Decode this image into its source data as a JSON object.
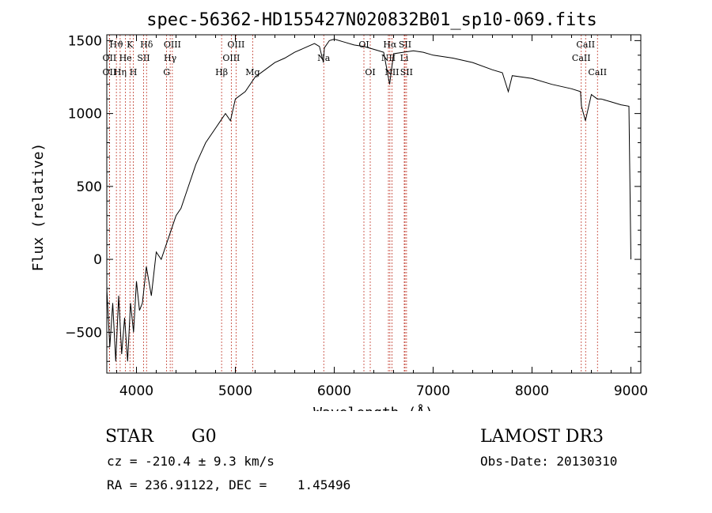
{
  "chart_data": {
    "type": "line",
    "title": "spec-56362-HD155427N020832B01_sp10-069.fits",
    "xlabel": "Wavelength (Å)",
    "ylabel": "Flux (relative)",
    "xlim": [
      3700,
      9100
    ],
    "ylim": [
      -780,
      1540
    ],
    "xticks": [
      4000,
      5000,
      6000,
      7000,
      8000,
      9000
    ],
    "yticks": [
      -500,
      0,
      500,
      1000,
      1500
    ],
    "series": [
      {
        "name": "flux",
        "x": [
          3700,
          3730,
          3760,
          3790,
          3820,
          3850,
          3880,
          3910,
          3940,
          3970,
          4000,
          4030,
          4060,
          4100,
          4150,
          4200,
          4250,
          4300,
          4350,
          4400,
          4450,
          4500,
          4600,
          4700,
          4800,
          4850,
          4900,
          4950,
          5000,
          5100,
          5200,
          5300,
          5400,
          5500,
          5600,
          5700,
          5800,
          5850,
          5890,
          5900,
          5950,
          6000,
          6100,
          6200,
          6300,
          6400,
          6500,
          6560,
          6600,
          6700,
          6800,
          6900,
          7000,
          7200,
          7400,
          7600,
          7700,
          7760,
          7800,
          8000,
          8200,
          8400,
          8490,
          8500,
          8540,
          8600,
          8660,
          8700,
          8800,
          8900,
          8980,
          9000
        ],
        "y": [
          -200,
          -600,
          -300,
          -700,
          -250,
          -650,
          -400,
          -700,
          -300,
          -500,
          -150,
          -350,
          -300,
          -50,
          -250,
          50,
          0,
          100,
          200,
          300,
          350,
          450,
          650,
          800,
          900,
          950,
          1000,
          950,
          1100,
          1150,
          1250,
          1300,
          1350,
          1380,
          1420,
          1450,
          1480,
          1460,
          1350,
          1450,
          1500,
          1510,
          1490,
          1470,
          1460,
          1440,
          1420,
          1200,
          1410,
          1420,
          1430,
          1420,
          1400,
          1380,
          1350,
          1300,
          1280,
          1150,
          1260,
          1240,
          1200,
          1170,
          1150,
          1050,
          950,
          1130,
          1100,
          1100,
          1080,
          1060,
          1050,
          0
        ]
      }
    ],
    "line_markers": [
      {
        "label": "OII",
        "x": 3727,
        "row": 2
      },
      {
        "label": "Hϑ",
        "x": 3797,
        "row": 0
      },
      {
        "label": "OII",
        "x": 3727,
        "row": 1
      },
      {
        "label": "Hη",
        "x": 3835,
        "row": 2
      },
      {
        "label": "He",
        "x": 3889,
        "row": 1
      },
      {
        "label": "K",
        "x": 3934,
        "row": 0
      },
      {
        "label": "H",
        "x": 3968,
        "row": 2
      },
      {
        "label": "SII",
        "x": 4072,
        "row": 1
      },
      {
        "label": "Hδ",
        "x": 4102,
        "row": 0
      },
      {
        "label": "G",
        "x": 4305,
        "row": 2
      },
      {
        "label": "Hγ",
        "x": 4341,
        "row": 1
      },
      {
        "label": "OIII",
        "x": 4363,
        "row": 0
      },
      {
        "label": "Hβ",
        "x": 4861,
        "row": 2
      },
      {
        "label": "OIII",
        "x": 4959,
        "row": 1
      },
      {
        "label": "OIII",
        "x": 5007,
        "row": 0
      },
      {
        "label": "Mg",
        "x": 5175,
        "row": 2
      },
      {
        "label": "Na",
        "x": 5894,
        "row": 1
      },
      {
        "label": "OI",
        "x": 6300,
        "row": 0
      },
      {
        "label": "OI",
        "x": 6364,
        "row": 2
      },
      {
        "label": "NII",
        "x": 6548,
        "row": 1
      },
      {
        "label": "Hα",
        "x": 6563,
        "row": 0
      },
      {
        "label": "NII",
        "x": 6583,
        "row": 2
      },
      {
        "label": "Li",
        "x": 6708,
        "row": 1
      },
      {
        "label": "SII",
        "x": 6716,
        "row": 0
      },
      {
        "label": "SII",
        "x": 6731,
        "row": 2
      },
      {
        "label": "CaII",
        "x": 8498,
        "row": 1
      },
      {
        "label": "CaII",
        "x": 8542,
        "row": 0
      },
      {
        "label": "CaII",
        "x": 8662,
        "row": 2
      }
    ]
  },
  "info": {
    "object_class": "STAR",
    "subclass": "G0",
    "survey": "LAMOST DR3",
    "redshift": "cz = -210.4 ± 9.3 km/s",
    "obs_date": "Obs-Date: 20130310",
    "coords": "RA = 236.91122, DEC =    1.45496"
  },
  "colors": {
    "spectrum": "#000000",
    "marker_line": "#c0392b",
    "axis": "#000000"
  }
}
